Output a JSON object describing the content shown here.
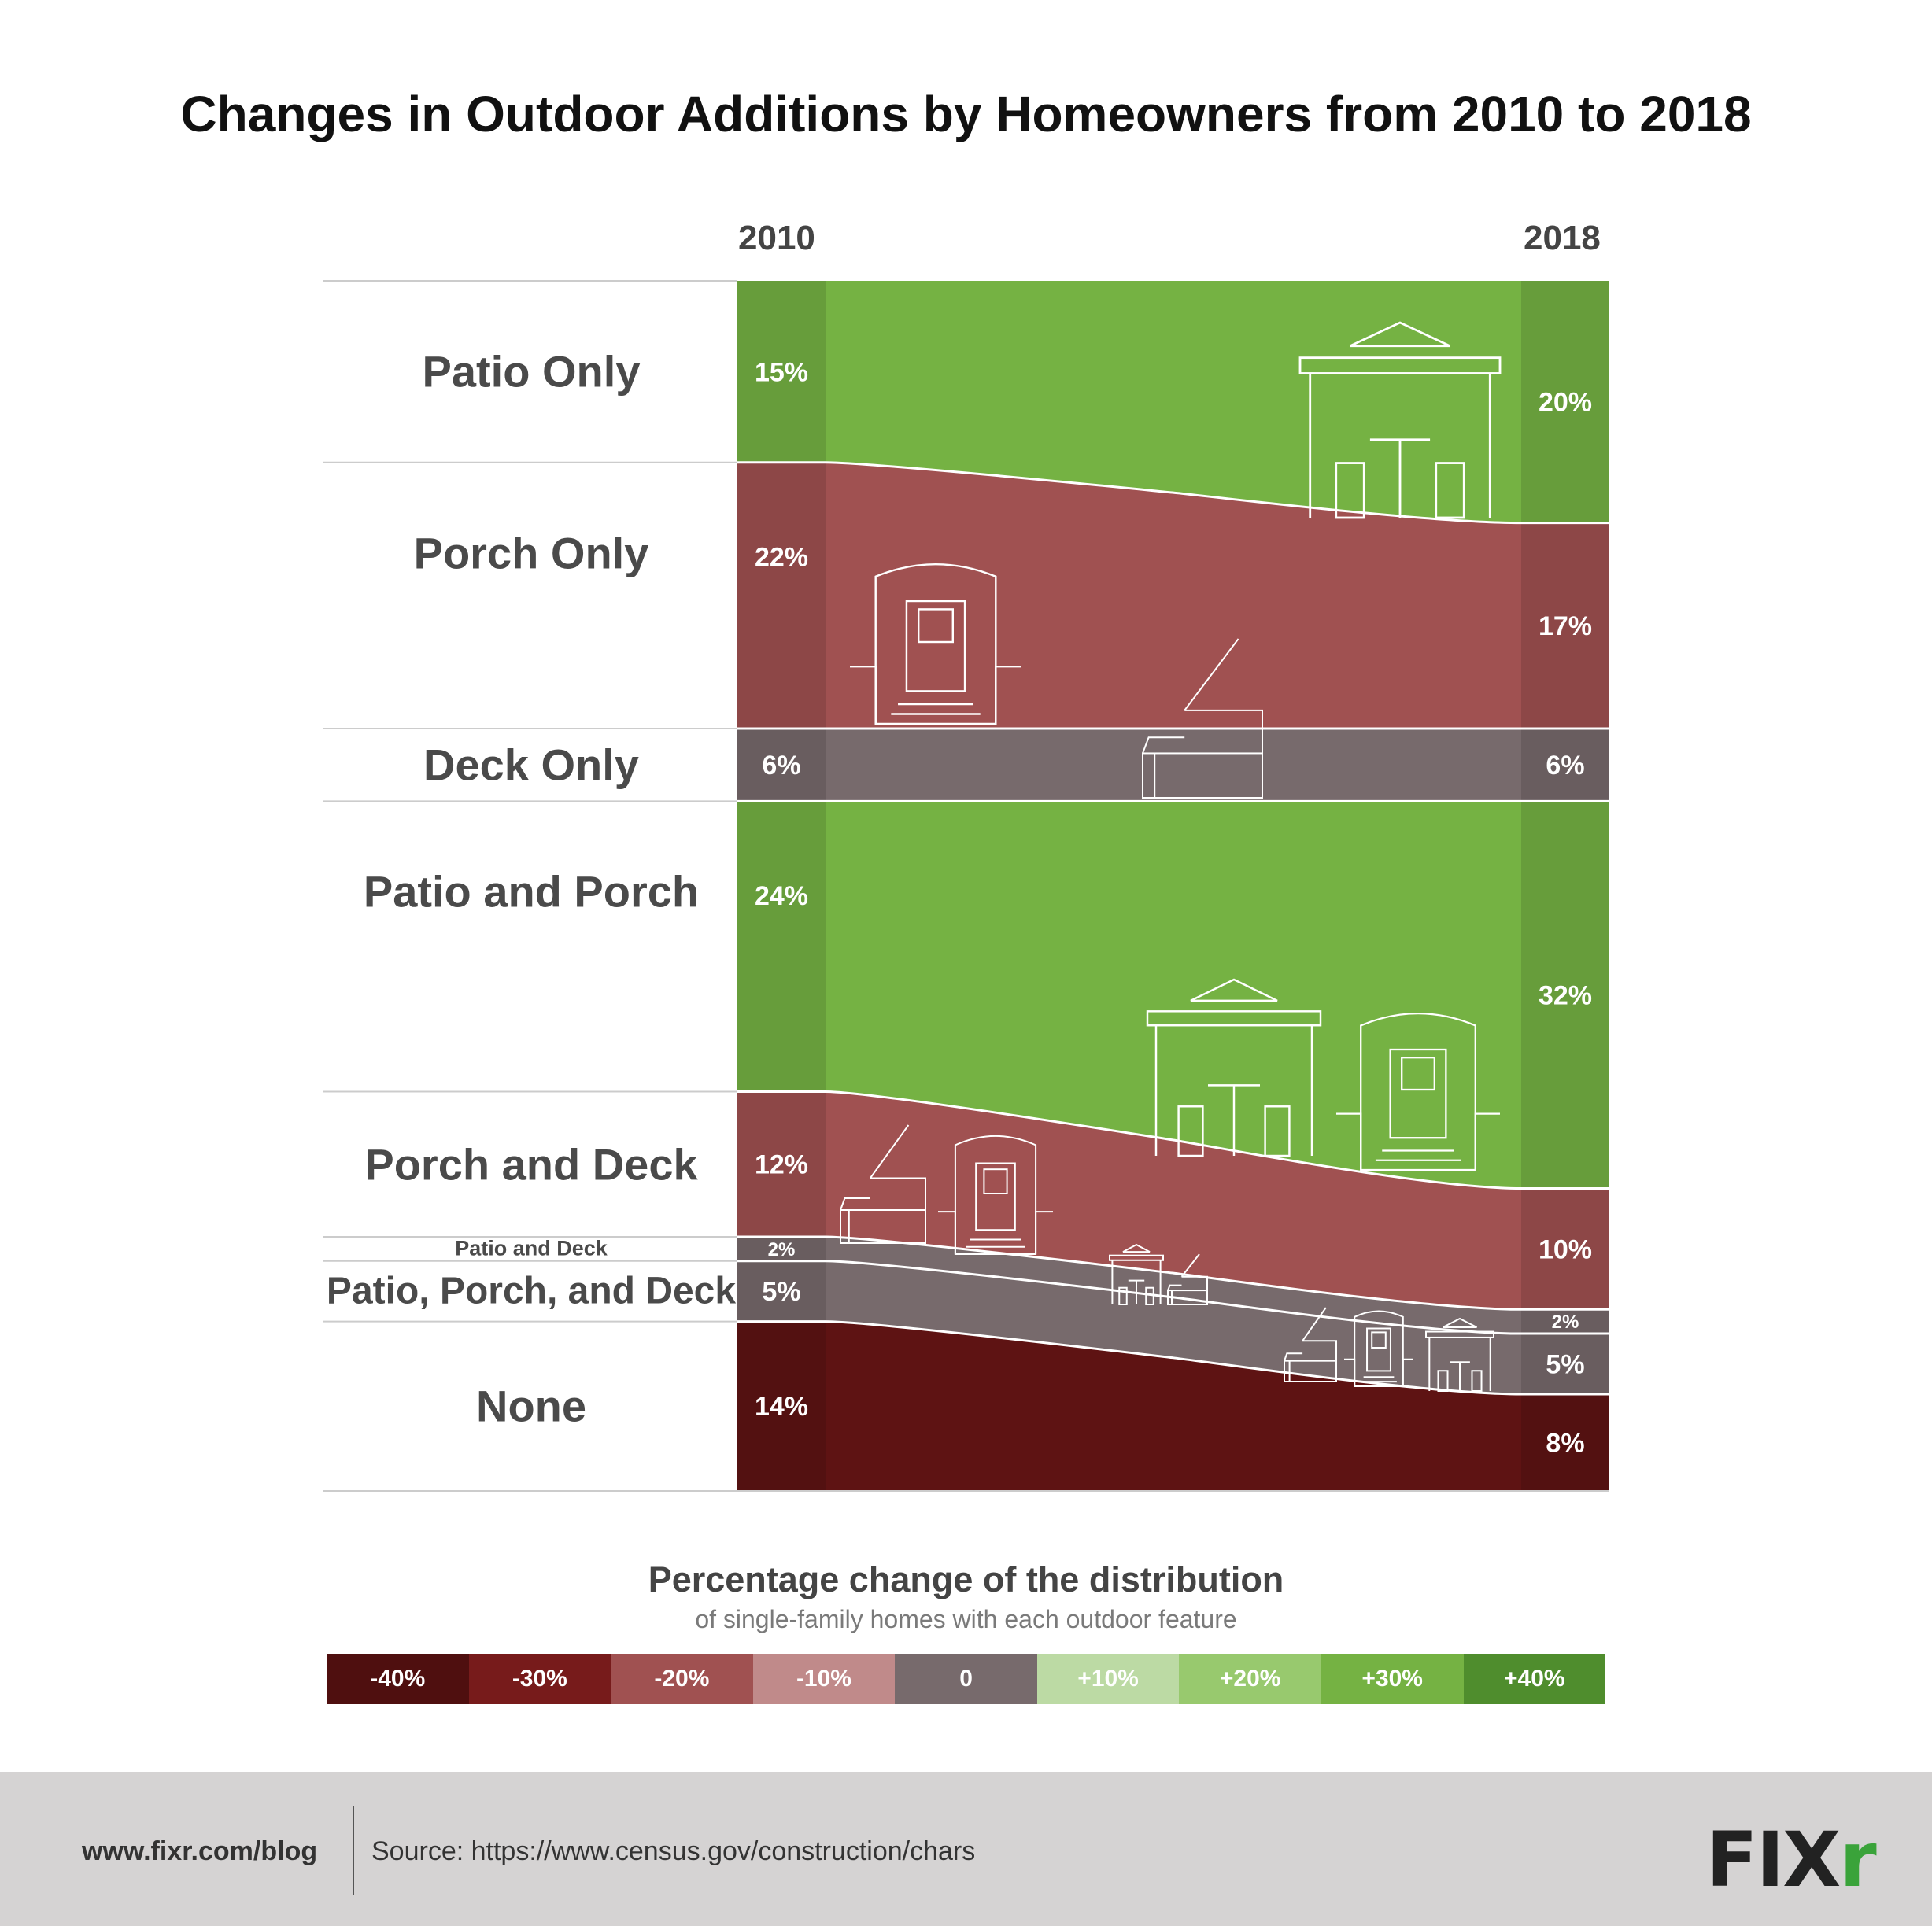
{
  "title": "Changes in Outdoor Additions by Homeowners from 2010 to 2018",
  "chart_data": {
    "type": "area",
    "x": [
      "2010",
      "2018"
    ],
    "unit": "%",
    "series": [
      {
        "name": "Patio Only",
        "label_size": "large",
        "values": [
          15,
          20
        ],
        "labels": [
          "15%",
          "20%"
        ],
        "change_color": "#75b243"
      },
      {
        "name": "Porch Only",
        "label_size": "large",
        "values": [
          22,
          17
        ],
        "labels": [
          "22%",
          "17%"
        ],
        "change_color": "#a05151"
      },
      {
        "name": "Deck Only",
        "label_size": "large",
        "values": [
          6,
          6
        ],
        "labels": [
          "6%",
          "6%"
        ],
        "change_color": "#776a6c"
      },
      {
        "name": "Patio and Porch",
        "label_size": "large",
        "values": [
          24,
          32
        ],
        "labels": [
          "24%",
          "32%"
        ],
        "change_color": "#75b243"
      },
      {
        "name": "Porch and Deck",
        "label_size": "large",
        "values": [
          12,
          10
        ],
        "labels": [
          "12%",
          "10%"
        ],
        "change_color": "#a05151"
      },
      {
        "name": "Patio and Deck",
        "label_size": "tiny",
        "values": [
          2,
          2
        ],
        "labels": [
          "2%",
          "2%"
        ],
        "change_color": "#776a6c"
      },
      {
        "name": "Patio, Porch, and Deck",
        "label_size": "medium",
        "values": [
          5,
          5
        ],
        "labels": [
          "5%",
          "5%"
        ],
        "change_color": "#776a6c"
      },
      {
        "name": "None",
        "label_size": "large",
        "values": [
          14,
          8
        ],
        "labels": [
          "14%",
          "8%"
        ],
        "change_color": "#5e1313"
      }
    ],
    "year_band_darken": 0.12
  },
  "legend": {
    "title": "Percentage change of the distribution",
    "subtitle": "of single-family homes with each outdoor feature",
    "items": [
      {
        "label": "-40%",
        "color": "#4f0f0f"
      },
      {
        "label": "-30%",
        "color": "#771b1b"
      },
      {
        "label": "-20%",
        "color": "#a05151"
      },
      {
        "label": "-10%",
        "color": "#c08a8a"
      },
      {
        "label": "0",
        "color": "#776a6c"
      },
      {
        "label": "+10%",
        "color": "#bcdaa4"
      },
      {
        "label": "+20%",
        "color": "#98c96e"
      },
      {
        "label": "+30%",
        "color": "#75b243"
      },
      {
        "label": "+40%",
        "color": "#4f8d2d"
      }
    ]
  },
  "footer": {
    "url": "www.fixr.com/blog",
    "source": "Source: https://www.census.gov/construction/chars",
    "logo_main": "FIX",
    "logo_accent": "r"
  }
}
